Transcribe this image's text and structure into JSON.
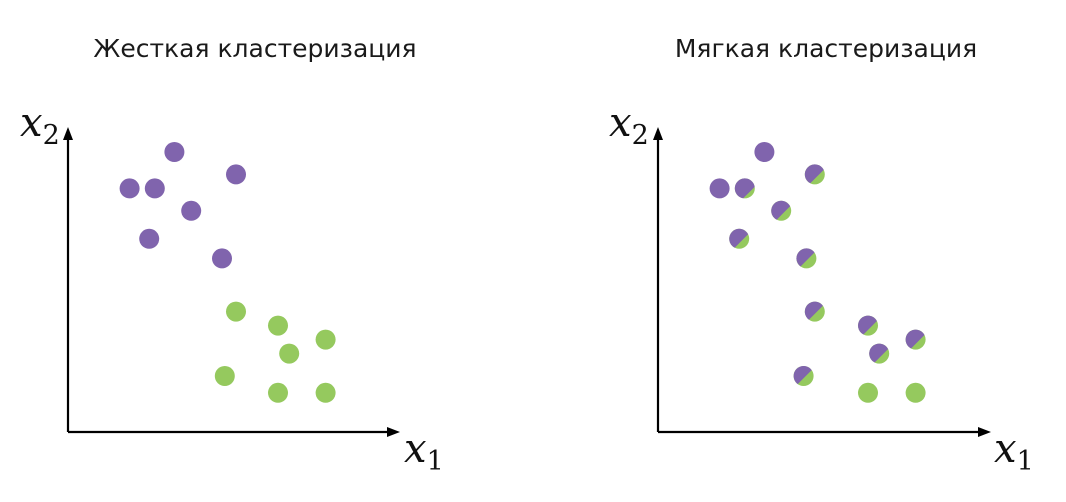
{
  "colors": {
    "cluster_1": "#8064ad",
    "cluster_2": "#95c95e",
    "axes": "#000000",
    "background": "#ffffff"
  },
  "panels": [
    {
      "title": "Жесткая кластеризация",
      "x_axis_label": "x",
      "x_axis_subscript": "1",
      "y_axis_label": "x",
      "y_axis_subscript": "2",
      "points": [
        {
          "x": 1.9,
          "y": 5.0,
          "p1": 1.0
        },
        {
          "x": 1.1,
          "y": 4.35,
          "p1": 1.0
        },
        {
          "x": 1.55,
          "y": 4.35,
          "p1": 1.0
        },
        {
          "x": 3.0,
          "y": 4.6,
          "p1": 1.0
        },
        {
          "x": 2.2,
          "y": 3.95,
          "p1": 1.0
        },
        {
          "x": 1.45,
          "y": 3.45,
          "p1": 1.0
        },
        {
          "x": 2.75,
          "y": 3.1,
          "p1": 1.0
        },
        {
          "x": 3.0,
          "y": 2.15,
          "p1": 0.0
        },
        {
          "x": 3.75,
          "y": 1.9,
          "p1": 0.0
        },
        {
          "x": 3.95,
          "y": 1.4,
          "p1": 0.0
        },
        {
          "x": 4.6,
          "y": 1.65,
          "p1": 0.0
        },
        {
          "x": 2.8,
          "y": 1.0,
          "p1": 0.0
        },
        {
          "x": 3.75,
          "y": 0.7,
          "p1": 0.0
        },
        {
          "x": 4.6,
          "y": 0.7,
          "p1": 0.0
        }
      ]
    },
    {
      "title": "Мягкая кластеризация",
      "x_axis_label": "x",
      "x_axis_subscript": "1",
      "y_axis_label": "x",
      "y_axis_subscript": "2",
      "points": [
        {
          "x": 1.9,
          "y": 5.0,
          "p1": 1.0
        },
        {
          "x": 1.1,
          "y": 4.35,
          "p1": 1.0
        },
        {
          "x": 1.55,
          "y": 4.35,
          "p1": 0.7
        },
        {
          "x": 2.8,
          "y": 4.6,
          "p1": 0.6
        },
        {
          "x": 2.2,
          "y": 3.95,
          "p1": 0.6
        },
        {
          "x": 1.45,
          "y": 3.45,
          "p1": 0.6
        },
        {
          "x": 2.65,
          "y": 3.1,
          "p1": 0.55
        },
        {
          "x": 2.8,
          "y": 2.15,
          "p1": 0.55
        },
        {
          "x": 3.75,
          "y": 1.9,
          "p1": 0.6
        },
        {
          "x": 3.95,
          "y": 1.4,
          "p1": 0.6
        },
        {
          "x": 4.6,
          "y": 1.65,
          "p1": 0.6
        },
        {
          "x": 2.6,
          "y": 1.0,
          "p1": 0.55
        },
        {
          "x": 3.75,
          "y": 0.7,
          "p1": 0.0
        },
        {
          "x": 4.6,
          "y": 0.7,
          "p1": 0.0
        }
      ]
    }
  ]
}
